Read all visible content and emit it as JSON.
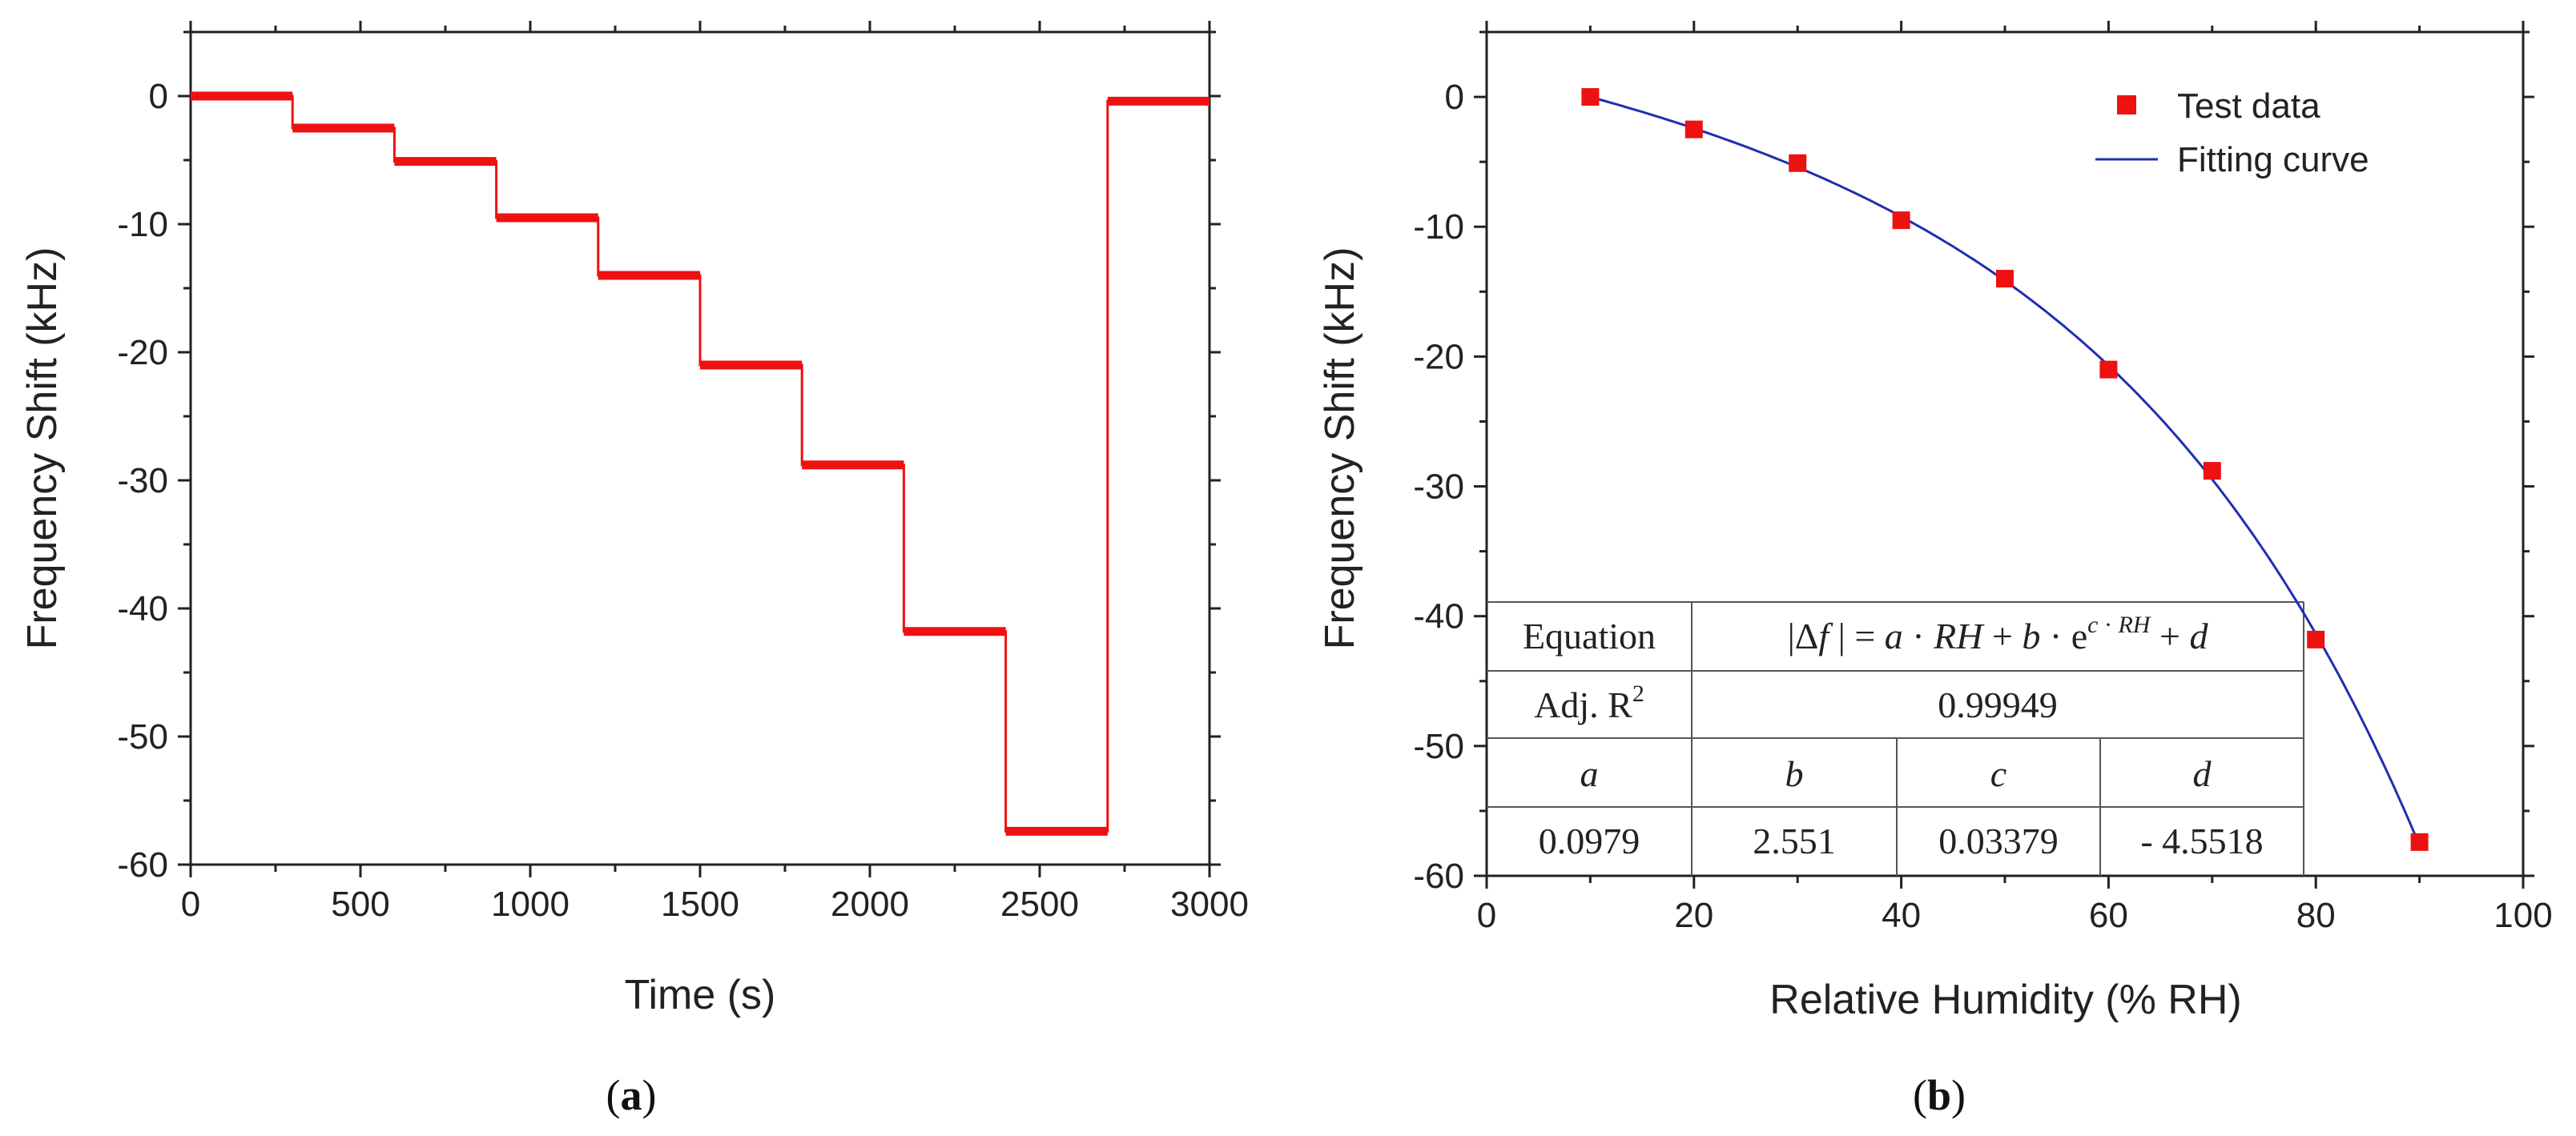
{
  "chart_data": [
    {
      "type": "line",
      "panel_label": "(a)",
      "panel_letter": "a",
      "xlabel": "Time (s)",
      "ylabel": "Frequency Shift (kHz)",
      "xlim": [
        0,
        3000
      ],
      "ylim": [
        -60,
        5
      ],
      "xticks": [
        0,
        500,
        1000,
        1500,
        2000,
        2500,
        3000
      ],
      "yticks": [
        0,
        -10,
        -20,
        -30,
        -40,
        -50,
        -60
      ],
      "grid": false,
      "color": "#ee1111",
      "series": [
        {
          "name": "Frequency shift vs time",
          "steps": [
            {
              "t_start": 0,
              "t_end": 300,
              "value": 0
            },
            {
              "t_start": 300,
              "t_end": 600,
              "value": -2.5
            },
            {
              "t_start": 600,
              "t_end": 900,
              "value": -5.1
            },
            {
              "t_start": 900,
              "t_end": 1200,
              "value": -9.5
            },
            {
              "t_start": 1200,
              "t_end": 1500,
              "value": -14
            },
            {
              "t_start": 1500,
              "t_end": 1800,
              "value": -21
            },
            {
              "t_start": 1800,
              "t_end": 2100,
              "value": -28.8
            },
            {
              "t_start": 2100,
              "t_end": 2400,
              "value": -41.8
            },
            {
              "t_start": 2400,
              "t_end": 2700,
              "value": -57.4
            },
            {
              "t_start": 2700,
              "t_end": 3000,
              "value": -0.4
            }
          ]
        }
      ]
    },
    {
      "type": "scatter",
      "panel_label": "(b)",
      "panel_letter": "b",
      "xlabel": "Relative Humidity (% RH)",
      "ylabel": "Frequency Shift (kHz)",
      "xlim": [
        0,
        100
      ],
      "ylim": [
        -60,
        5
      ],
      "xticks": [
        0,
        20,
        40,
        60,
        80,
        100
      ],
      "yticks": [
        0,
        -10,
        -20,
        -30,
        -40,
        -50,
        -60
      ],
      "grid": false,
      "legend_position": "top-right",
      "series": [
        {
          "name": "Test data",
          "marker": "square",
          "color": "#ee1111",
          "x": [
            10,
            20,
            30,
            40,
            50,
            60,
            70,
            80,
            90
          ],
          "y": [
            0,
            -2.5,
            -5.1,
            -9.5,
            -14,
            -21,
            -28.8,
            -41.8,
            -57.4
          ]
        },
        {
          "name": "Fitting curve",
          "line": true,
          "color": "#1f2fb0",
          "fit": {
            "a": 0.0979,
            "b": 2.551,
            "c": 0.03379,
            "d": -4.5518
          }
        }
      ],
      "table": {
        "equation_label": "Equation",
        "equation": "|Δf | = a · RH + b · e^(c · RH) + d",
        "adj_r2_label": "Adj. R",
        "adj_r2_superscript": "2",
        "adj_r2_value": "0.99949",
        "param_names": [
          "a",
          "b",
          "c",
          "d"
        ],
        "param_values": [
          "0.0979",
          "2.551",
          "0.03379",
          "- 4.5518"
        ]
      }
    }
  ]
}
